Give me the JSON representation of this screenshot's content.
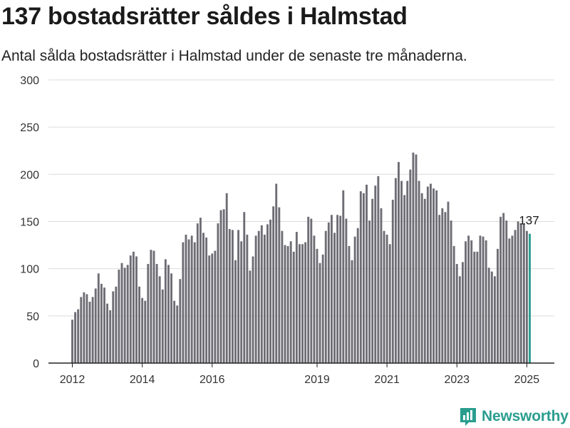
{
  "title": "137 bostadsrätter såldes i Halmstad",
  "subtitle": "Antal sålda bostadsrätter i Halmstad under de senaste tre månaderna.",
  "brand": {
    "name": "Newsworthy",
    "icon": "newsworthy-logo-icon"
  },
  "colors": {
    "bar": "#6e6d75",
    "highlight": "#2a9d8f",
    "grid": "#dcdcdc",
    "axis": "#222222"
  },
  "chart_data": {
    "type": "bar",
    "title": "",
    "xlabel": "",
    "ylabel": "",
    "ylim": [
      0,
      300
    ],
    "y_ticks": [
      "0",
      "50",
      "100",
      "150",
      "200",
      "250",
      "300"
    ],
    "x_ticks": [
      "2012",
      "2014",
      "2016",
      "2019",
      "2021",
      "2023",
      "2025"
    ],
    "grid": true,
    "last_label": "137",
    "series": [
      {
        "values": [
          46,
          54,
          57,
          70,
          75,
          73,
          65,
          70,
          79,
          95,
          84,
          80,
          63,
          56,
          76,
          81,
          99,
          106,
          101,
          104,
          114,
          118,
          113,
          81,
          69,
          66,
          105,
          120,
          119,
          105,
          92,
          78,
          110,
          104,
          95,
          66,
          61,
          89,
          128,
          136,
          131,
          135,
          128,
          148,
          154,
          138,
          133,
          114,
          116,
          119,
          148,
          162,
          163,
          180,
          142,
          141,
          109,
          141,
          129,
          160,
          136,
          98,
          113,
          135,
          140,
          146,
          136,
          147,
          152,
          166,
          190,
          165,
          140,
          125,
          124,
          129,
          118,
          139,
          126,
          126,
          128,
          155,
          153,
          135,
          121,
          106,
          115,
          140,
          149,
          157,
          138,
          157,
          156,
          183,
          153,
          124,
          109,
          134,
          143,
          182,
          180,
          189,
          151,
          174,
          188,
          198,
          164,
          140,
          136,
          126,
          173,
          196,
          213,
          193,
          178,
          193,
          205,
          223,
          221,
          193,
          180,
          174,
          187,
          190,
          185,
          183,
          157,
          164,
          160,
          171,
          151,
          124,
          105,
          92,
          107,
          129,
          135,
          130,
          118,
          118,
          135,
          134,
          130,
          101,
          97,
          92,
          121,
          155,
          159,
          151,
          132,
          135,
          141,
          150,
          147,
          147,
          140,
          137
        ]
      }
    ]
  }
}
